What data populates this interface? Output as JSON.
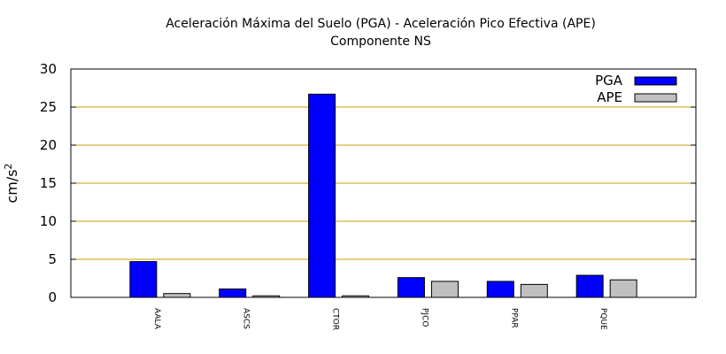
{
  "chart_data": {
    "type": "bar",
    "title": "Aceleración Máxima del Suelo (PGA) -  Aceleración Pico Efectiva (APE)",
    "subtitle": "Componente NS",
    "xlabel": "",
    "ylabel": "cm/s",
    "ylabel_superscript": "2",
    "ylim": [
      0,
      30
    ],
    "yticks": [
      "0",
      "5",
      "10",
      "15",
      "20",
      "25",
      "30"
    ],
    "grid": true,
    "legend_position": "top-right",
    "categories": [
      "AALA",
      "ASCS",
      "CTOR",
      "PJCO",
      "PPAR",
      "PQUE"
    ],
    "series": [
      {
        "name": "PGA",
        "color": "#0000ff",
        "values": [
          4.7,
          1.1,
          26.7,
          2.6,
          2.1,
          2.9
        ]
      },
      {
        "name": "APE",
        "color": "#c0c0c0",
        "values": [
          0.5,
          0.2,
          0.2,
          2.1,
          1.7,
          2.3
        ]
      }
    ],
    "grid_color": "#c8a000"
  }
}
